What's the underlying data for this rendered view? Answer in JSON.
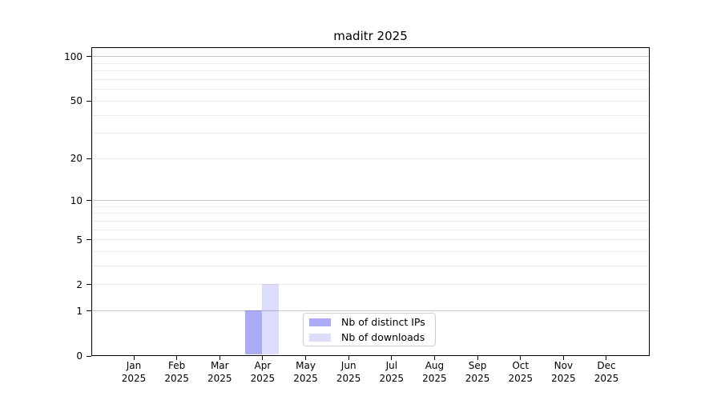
{
  "figure": {
    "background": "#ffffff",
    "axis_color": "#000000"
  },
  "chart_data": {
    "type": "bar",
    "title": "maditr 2025",
    "categories": [
      "Jan",
      "Feb",
      "Mar",
      "Apr",
      "May",
      "Jun",
      "Jul",
      "Aug",
      "Sep",
      "Oct",
      "Nov",
      "Dec"
    ],
    "x_year_label": "2025",
    "series": [
      {
        "name": "Nb of distinct IPs",
        "color": "#5B5BF082",
        "values": [
          0,
          0,
          0,
          1,
          0,
          0,
          0,
          0,
          0,
          0,
          0,
          0
        ]
      },
      {
        "name": "Nb of downloads",
        "color": "#5B5BF036",
        "values": [
          0,
          0,
          0,
          2,
          0,
          0,
          0,
          0,
          0,
          0,
          0,
          0
        ]
      }
    ],
    "yticks": [
      0,
      1,
      2,
      5,
      10,
      20,
      50,
      100
    ],
    "scale": "log1p",
    "ylim": [
      0,
      115
    ],
    "grid": {
      "major_values": [
        1,
        10,
        100
      ],
      "minor_values": [
        2,
        3,
        4,
        5,
        6,
        7,
        8,
        9,
        20,
        30,
        40,
        50,
        60,
        70,
        80,
        90
      ],
      "major_color": "#c8c8c8",
      "minor_color": "#ececec"
    },
    "legend_position": "bottom-center"
  }
}
